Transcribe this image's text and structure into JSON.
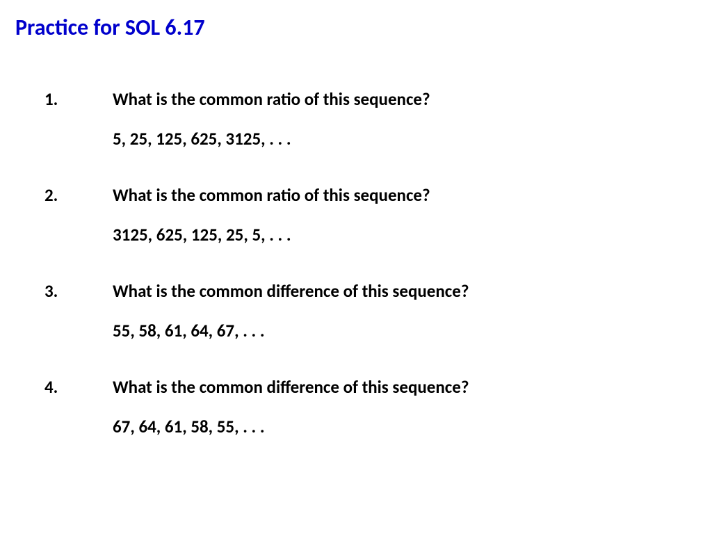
{
  "title": {
    "text": "Practice for SOL 6.17",
    "color": "#0000cc",
    "fontsize": 32,
    "fontweight": "bold"
  },
  "body_style": {
    "text_color": "#000000",
    "fontsize": 25,
    "fontweight": "bold",
    "background_color": "#ffffff"
  },
  "questions": [
    {
      "number": "1.",
      "text": "What is the common ratio of this sequence?",
      "sequence": "5, 25, 125, 625, 3125, . . ."
    },
    {
      "number": "2.",
      "text": "What is the common ratio of this sequence?",
      "sequence": "3125, 625, 125, 25, 5, . . ."
    },
    {
      "number": "3.",
      "text": "What is the common difference of this sequence?",
      "sequence": "55, 58, 61, 64, 67, . . ."
    },
    {
      "number": "4.",
      "text": "What is the common difference of this sequence?",
      "sequence": "67, 64, 61, 58, 55, . . ."
    }
  ]
}
